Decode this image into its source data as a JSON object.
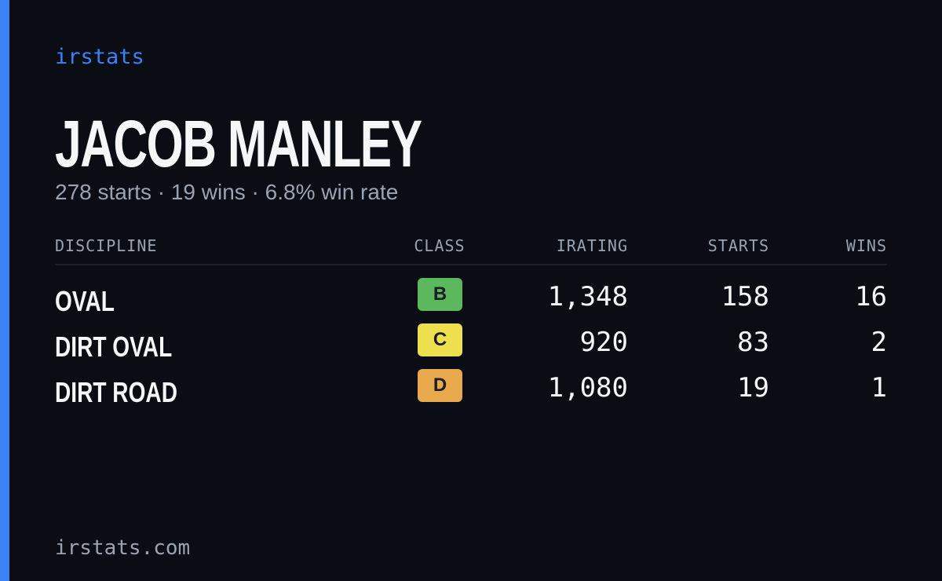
{
  "brand": "irstats",
  "player": {
    "name": "JACOB MANLEY",
    "summary": "278 starts · 19 wins · 6.8% win rate"
  },
  "table": {
    "headers": [
      "DISCIPLINE",
      "CLASS",
      "IRATING",
      "STARTS",
      "WINS"
    ],
    "rows": [
      {
        "discipline": "OVAL",
        "class": "B",
        "class_color": "#5cb85c",
        "irating": "1,348",
        "starts": "158",
        "wins": "16"
      },
      {
        "discipline": "DIRT OVAL",
        "class": "C",
        "class_color": "#ece04f",
        "irating": "920",
        "starts": "83",
        "wins": "2"
      },
      {
        "discipline": "DIRT ROAD",
        "class": "D",
        "class_color": "#e8a94c",
        "irating": "1,080",
        "starts": "19",
        "wins": "1"
      }
    ]
  },
  "footer": "irstats.com"
}
